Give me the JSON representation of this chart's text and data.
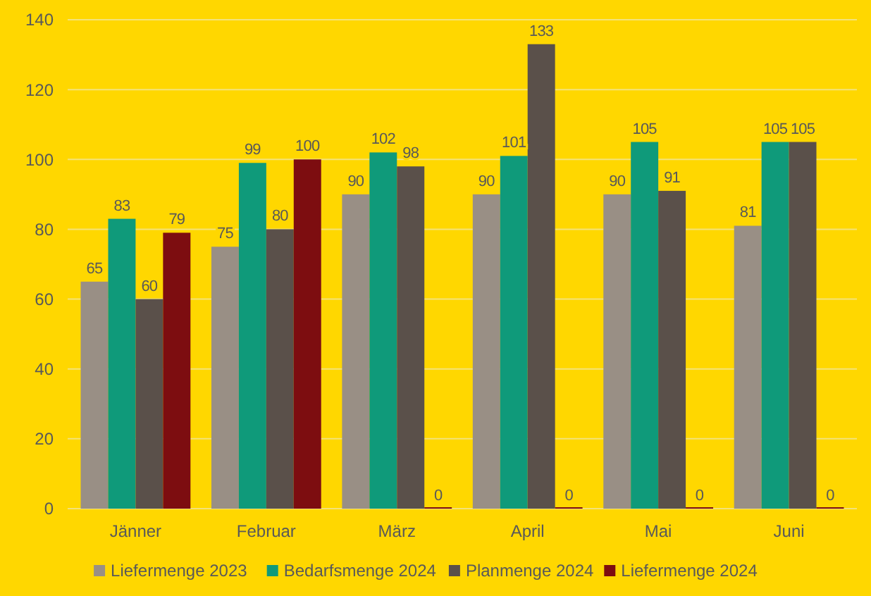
{
  "chart_data": {
    "type": "bar",
    "categories": [
      "Jänner",
      "Februar",
      "März",
      "April",
      "Mai",
      "Juni"
    ],
    "series": [
      {
        "name": "Liefermenge 2023",
        "color": "#998f85",
        "values": [
          65,
          75,
          90,
          90,
          90,
          81
        ]
      },
      {
        "name": "Bedarfsmenge 2024",
        "color": "#0f9a7a",
        "values": [
          83,
          99,
          102,
          101,
          105,
          105
        ]
      },
      {
        "name": "Planmenge 2024",
        "color": "#5a504a",
        "values": [
          60,
          80,
          98,
          133,
          91,
          105
        ]
      },
      {
        "name": "Liefermenge 2024",
        "color": "#7d0d10",
        "values": [
          79,
          100,
          0,
          0,
          0,
          0
        ]
      }
    ],
    "ylim": [
      0,
      140
    ],
    "yticks": [
      0,
      20,
      40,
      60,
      80,
      100,
      120,
      140
    ],
    "grid": "y",
    "legend": "bottom",
    "data_labels": true
  }
}
